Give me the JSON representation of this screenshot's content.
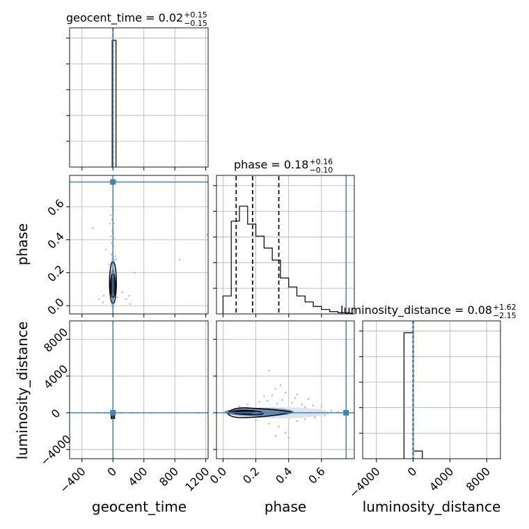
{
  "chart_data": {
    "type": "scatter",
    "description_free": true,
    "parameters": [
      "geocent_time",
      "phase",
      "luminosity_distance"
    ],
    "truth": {
      "geocent_time": 0,
      "phase": 0.75,
      "luminosity_distance": 0
    },
    "colors": {
      "truth": "#4682b4",
      "grid": "#b0b0b0",
      "hist": "#000000",
      "scatter": "#b3b3b3",
      "contour_fill": "#5b7fa6"
    },
    "grid": true,
    "panels": {
      "geocent_time_hist": {
        "title_main": "geocent_time = 0.02",
        "title_sup": "+0.15",
        "title_sub": "−0.15",
        "xlim": [
          -560,
          1230
        ],
        "bins": [
          [
            -10,
            0,
            0.95
          ],
          [
            0,
            10,
            0.95
          ],
          [
            10,
            20,
            0.95
          ],
          [
            20,
            30,
            0.95
          ],
          [
            30,
            40,
            0.95
          ]
        ],
        "quantiles": [
          -0.13,
          0.02,
          0.17
        ]
      },
      "phase_hist": {
        "title_main": "phase = 0.18",
        "title_sup": "+0.16",
        "title_sub": "−0.10",
        "xlim": [
          -0.04,
          0.8
        ],
        "bins": [
          [
            0.0,
            0.05,
            0.12
          ],
          [
            0.05,
            0.1,
            0.62
          ],
          [
            0.1,
            0.15,
            0.72
          ],
          [
            0.15,
            0.2,
            0.6
          ],
          [
            0.2,
            0.25,
            0.52
          ],
          [
            0.25,
            0.3,
            0.44
          ],
          [
            0.3,
            0.35,
            0.36
          ],
          [
            0.35,
            0.4,
            0.24
          ],
          [
            0.4,
            0.45,
            0.18
          ],
          [
            0.45,
            0.5,
            0.12
          ],
          [
            0.5,
            0.55,
            0.08
          ],
          [
            0.55,
            0.6,
            0.05
          ],
          [
            0.6,
            0.65,
            0.03
          ],
          [
            0.65,
            0.7,
            0.015
          ],
          [
            0.7,
            0.75,
            0.008
          ]
        ],
        "quantiles": [
          0.08,
          0.18,
          0.34
        ]
      },
      "luminosity_distance_hist": {
        "title_main": "luminosity_distance = 0.08",
        "title_sup": "+1.62",
        "title_sub": "−2.15",
        "xlim": [
          -5500,
          9500
        ],
        "bins": [
          [
            -1000,
            0,
            0.86
          ],
          [
            0,
            1000,
            0.06
          ]
        ],
        "quantiles": [
          -2.07,
          0.08,
          1.7
        ]
      }
    },
    "axes": {
      "geocent_time": {
        "label": "geocent_time",
        "ticks": [
          -400,
          0,
          400,
          800,
          1200
        ],
        "tick_labels": [
          "−400",
          "0",
          "400",
          "800",
          "1200"
        ]
      },
      "phase": {
        "label": "phase",
        "ticks": [
          0.0,
          0.2,
          0.4,
          0.6
        ],
        "tick_labels": [
          "0.0",
          "0.2",
          "0.4",
          "0.6"
        ],
        "range": [
          -0.05,
          0.79
        ]
      },
      "luminosity_distance": {
        "label": "luminosity_distance",
        "ticks": [
          -4000,
          0,
          4000,
          8000
        ],
        "tick_labels": [
          "−4000",
          "0",
          "4000",
          "8000"
        ],
        "range": [
          -5000,
          10000
        ]
      }
    },
    "scatter_points": {
      "geocent_time_phase": [
        [
          -260,
          0.47
        ],
        [
          -90,
          0.34
        ],
        [
          -40,
          0.5
        ],
        [
          -30,
          0.55
        ],
        [
          -25,
          0.42
        ],
        [
          -20,
          0.6
        ],
        [
          -15,
          0.38
        ],
        [
          -10,
          0.52
        ],
        [
          -8,
          0.45
        ],
        [
          -5,
          0.32
        ],
        [
          0,
          0.58
        ],
        [
          5,
          0.44
        ],
        [
          8,
          0.36
        ],
        [
          12,
          0.5
        ],
        [
          20,
          0.41
        ],
        [
          30,
          0.3
        ],
        [
          -5,
          0.0
        ],
        [
          10,
          0.02
        ],
        [
          -15,
          0.01
        ],
        [
          60,
          0.05
        ],
        [
          -180,
          0.04
        ],
        [
          -130,
          0.02
        ],
        [
          120,
          0.08
        ],
        [
          210,
          0.06
        ],
        [
          220,
          0.01
        ],
        [
          170,
          0.04
        ],
        [
          280,
          0.2
        ],
        [
          860,
          0.28
        ],
        [
          1220,
          0.43
        ],
        [
          -120,
          0.06
        ],
        [
          40,
          0.28
        ],
        [
          -50,
          0.25
        ],
        [
          25,
          0.22
        ],
        [
          -35,
          0.18
        ],
        [
          15,
          0.27
        ],
        [
          -18,
          0.31
        ],
        [
          10,
          0.15
        ]
      ],
      "geocent_time_luminosity_distance": [
        [
          -30,
          0
        ],
        [
          30,
          0
        ],
        [
          100,
          0
        ],
        [
          240,
          0
        ],
        [
          320,
          0
        ],
        [
          -100,
          0
        ],
        [
          500,
          0
        ],
        [
          820,
          0
        ],
        [
          1100,
          0
        ],
        [
          -200,
          0
        ]
      ],
      "phase_luminosity_distance": [
        [
          0.28,
          4600
        ],
        [
          0.35,
          3000
        ],
        [
          0.32,
          2600
        ],
        [
          0.38,
          2200
        ],
        [
          0.45,
          2000
        ],
        [
          0.3,
          1900
        ],
        [
          0.52,
          1500
        ],
        [
          0.36,
          1400
        ],
        [
          0.27,
          1300
        ],
        [
          0.42,
          1100
        ],
        [
          0.48,
          900
        ],
        [
          0.55,
          800
        ],
        [
          0.6,
          700
        ],
        [
          0.5,
          600
        ],
        [
          0.4,
          500
        ],
        [
          0.33,
          1000
        ],
        [
          0.25,
          1800
        ],
        [
          0.44,
          1600
        ],
        [
          0.34,
          -1500
        ],
        [
          0.38,
          -2200
        ],
        [
          0.32,
          -2500
        ],
        [
          0.4,
          -2700
        ],
        [
          0.45,
          -900
        ],
        [
          0.5,
          -700
        ],
        [
          0.56,
          -500
        ],
        [
          0.62,
          -300
        ],
        [
          0.66,
          200
        ],
        [
          0.7,
          100
        ],
        [
          0.58,
          300
        ],
        [
          0.22,
          1200
        ],
        [
          0.15,
          900
        ],
        [
          0.1,
          700
        ],
        [
          0.2,
          -800
        ],
        [
          0.28,
          -1200
        ],
        [
          0.36,
          300
        ],
        [
          0.46,
          250
        ],
        [
          0.53,
          -200
        ]
      ]
    }
  }
}
